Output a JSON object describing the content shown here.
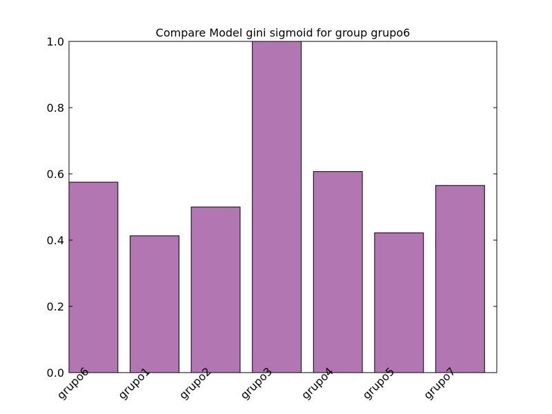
{
  "chart_data": {
    "type": "bar",
    "title": "Compare Model gini sigmoid for group grupo6",
    "xlabel": "",
    "ylabel": "",
    "categories": [
      "grupo6",
      "grupo1",
      "grupo2",
      "grupo3",
      "grupo4",
      "grupo5",
      "grupo7"
    ],
    "values": [
      0.575,
      0.413,
      0.5,
      1.0,
      0.607,
      0.422,
      0.565
    ],
    "ylim": [
      0,
      1.0
    ],
    "yticks": [
      "0.0",
      "0.2",
      "0.4",
      "0.6",
      "0.8",
      "1.0"
    ],
    "grid": false,
    "bar_color": "#b276b2",
    "edge_color": "#000000"
  }
}
